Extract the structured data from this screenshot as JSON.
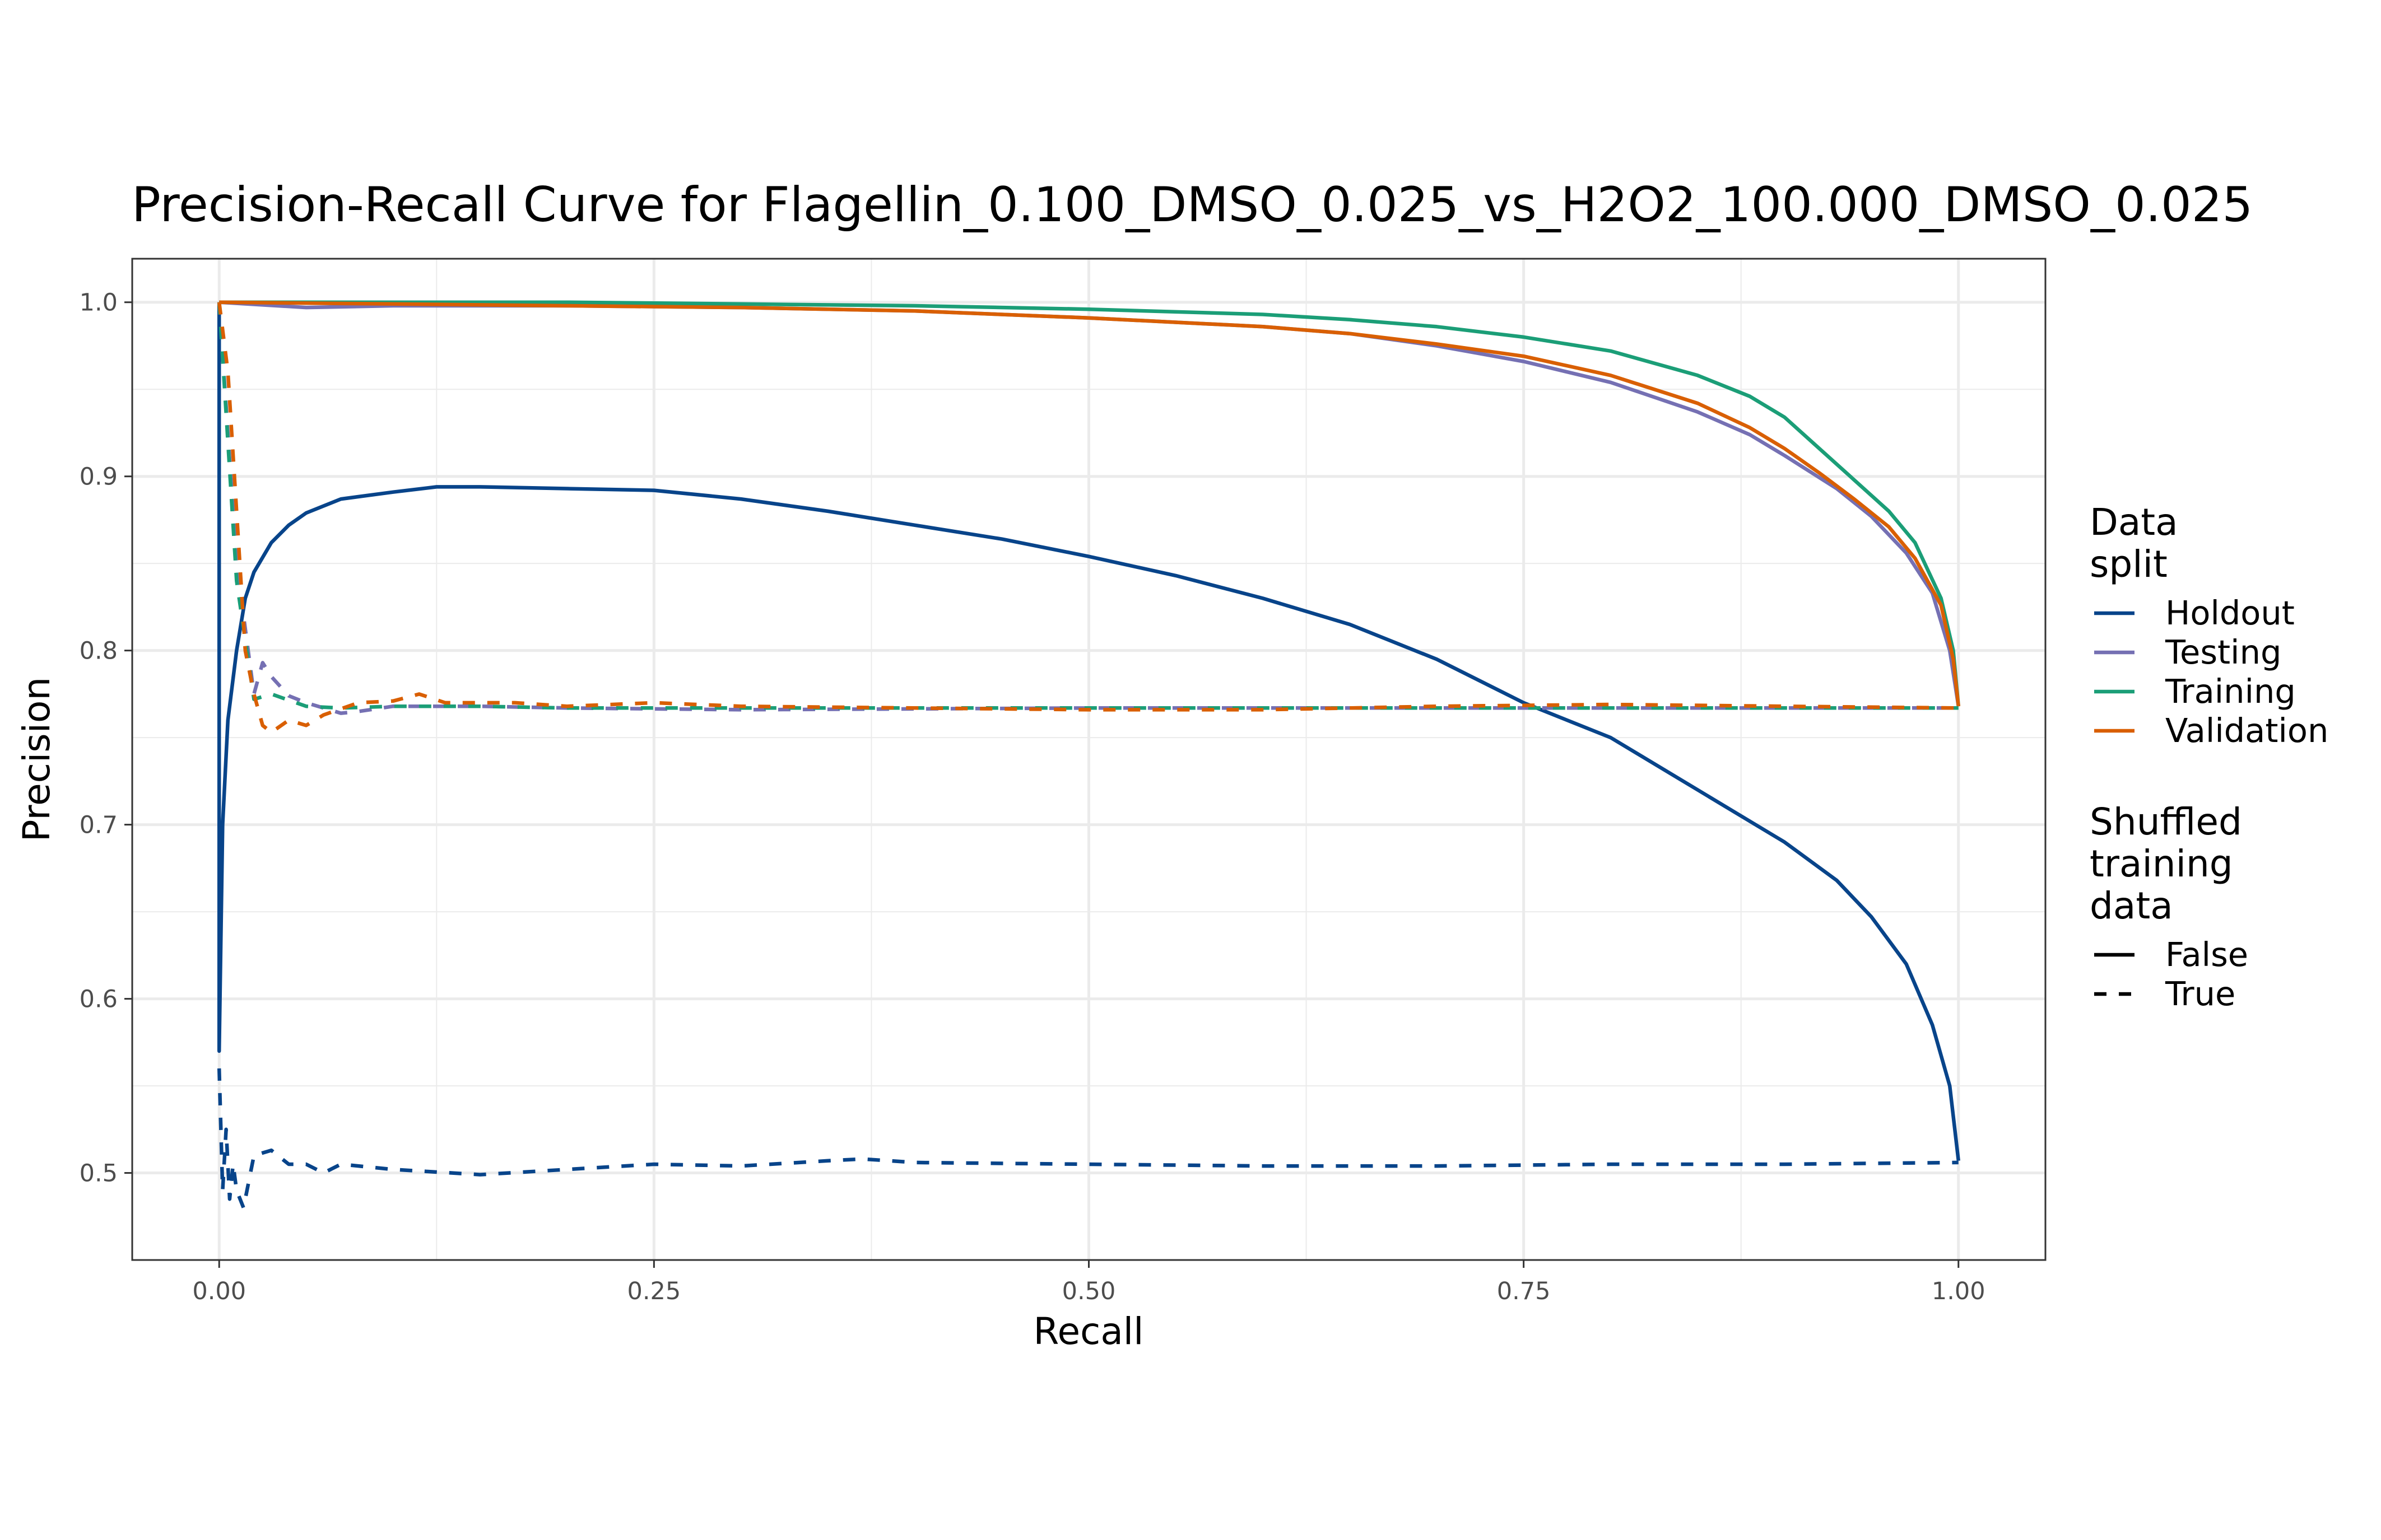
{
  "chart_data": {
    "type": "line",
    "title": "Precision-Recall Curve for Flagellin_0.100_DMSO_0.025_vs_H2O2_100.000_DMSO_0.025",
    "xlabel": "Recall",
    "ylabel": "Precision",
    "xlim": [
      -0.05,
      1.05
    ],
    "ylim": [
      0.45,
      1.025
    ],
    "xticks": [
      0.0,
      0.25,
      0.5,
      0.75,
      1.0
    ],
    "xtick_labels": [
      "0.00",
      "0.25",
      "0.50",
      "0.75",
      "1.00"
    ],
    "yticks": [
      0.5,
      0.6,
      0.7,
      0.8,
      0.9,
      1.0
    ],
    "ytick_labels": [
      "0.5",
      "0.6",
      "0.7",
      "0.8",
      "0.9",
      "1.0"
    ],
    "grid": true,
    "legend_position": "right",
    "legend": {
      "color_title": [
        "Data",
        "split"
      ],
      "linetype_title": [
        "Shuffled",
        "training",
        "data"
      ],
      "color_entries": [
        {
          "label": "Holdout",
          "color": "#08448a"
        },
        {
          "label": "Testing",
          "color": "#7570b3"
        },
        {
          "label": "Training",
          "color": "#1b9e77"
        },
        {
          "label": "Validation",
          "color": "#d95f02"
        }
      ],
      "linetype_entries": [
        {
          "label": "False",
          "dash": "solid"
        },
        {
          "label": "True",
          "dash": "dashed"
        }
      ]
    },
    "series": [
      {
        "split": "Holdout",
        "shuffled": "False",
        "color": "#08448a",
        "dashed": false,
        "x": [
          0.0,
          0.0,
          0.002,
          0.005,
          0.01,
          0.015,
          0.02,
          0.03,
          0.04,
          0.05,
          0.07,
          0.1,
          0.125,
          0.15,
          0.2,
          0.25,
          0.3,
          0.35,
          0.4,
          0.45,
          0.5,
          0.55,
          0.6,
          0.65,
          0.7,
          0.75,
          0.8,
          0.85,
          0.9,
          0.93,
          0.95,
          0.97,
          0.985,
          0.995,
          1.0
        ],
        "y": [
          1.0,
          0.57,
          0.7,
          0.76,
          0.8,
          0.83,
          0.845,
          0.862,
          0.872,
          0.879,
          0.887,
          0.891,
          0.894,
          0.894,
          0.893,
          0.892,
          0.887,
          0.88,
          0.872,
          0.864,
          0.854,
          0.843,
          0.83,
          0.815,
          0.795,
          0.77,
          0.75,
          0.72,
          0.69,
          0.668,
          0.647,
          0.62,
          0.585,
          0.55,
          0.507
        ]
      },
      {
        "split": "Testing",
        "shuffled": "False",
        "color": "#7570b3",
        "dashed": false,
        "x": [
          0.0,
          0.05,
          0.1,
          0.2,
          0.3,
          0.4,
          0.5,
          0.6,
          0.65,
          0.7,
          0.75,
          0.8,
          0.85,
          0.88,
          0.9,
          0.93,
          0.95,
          0.97,
          0.985,
          0.995,
          1.0
        ],
        "y": [
          1.0,
          0.997,
          0.998,
          0.998,
          0.997,
          0.995,
          0.991,
          0.986,
          0.982,
          0.975,
          0.966,
          0.954,
          0.937,
          0.924,
          0.912,
          0.893,
          0.877,
          0.856,
          0.833,
          0.8,
          0.768
        ]
      },
      {
        "split": "Training",
        "shuffled": "False",
        "color": "#1b9e77",
        "dashed": false,
        "x": [
          0.0,
          0.1,
          0.2,
          0.3,
          0.4,
          0.5,
          0.6,
          0.65,
          0.7,
          0.75,
          0.8,
          0.85,
          0.88,
          0.9,
          0.92,
          0.94,
          0.96,
          0.975,
          0.99,
          0.997,
          1.0
        ],
        "y": [
          1.0,
          1.0,
          1.0,
          0.999,
          0.998,
          0.996,
          0.993,
          0.99,
          0.986,
          0.98,
          0.972,
          0.958,
          0.946,
          0.934,
          0.916,
          0.898,
          0.88,
          0.862,
          0.83,
          0.8,
          0.768
        ]
      },
      {
        "split": "Validation",
        "shuffled": "False",
        "color": "#d95f02",
        "dashed": false,
        "x": [
          0.0,
          0.1,
          0.2,
          0.3,
          0.4,
          0.5,
          0.6,
          0.65,
          0.7,
          0.75,
          0.8,
          0.85,
          0.88,
          0.9,
          0.92,
          0.94,
          0.96,
          0.975,
          0.99,
          0.997,
          1.0
        ],
        "y": [
          1.0,
          0.999,
          0.998,
          0.997,
          0.995,
          0.991,
          0.986,
          0.982,
          0.976,
          0.969,
          0.958,
          0.942,
          0.928,
          0.916,
          0.902,
          0.887,
          0.871,
          0.853,
          0.826,
          0.795,
          0.768
        ]
      },
      {
        "split": "Holdout",
        "shuffled": "True",
        "color": "#08448a",
        "dashed": true,
        "x": [
          0.0,
          0.002,
          0.004,
          0.006,
          0.008,
          0.01,
          0.014,
          0.02,
          0.03,
          0.04,
          0.05,
          0.06,
          0.07,
          0.1,
          0.15,
          0.2,
          0.25,
          0.3,
          0.35,
          0.37,
          0.4,
          0.5,
          0.6,
          0.7,
          0.8,
          0.9,
          1.0
        ],
        "y": [
          0.56,
          0.49,
          0.525,
          0.485,
          0.505,
          0.49,
          0.48,
          0.51,
          0.513,
          0.505,
          0.505,
          0.5,
          0.505,
          0.502,
          0.499,
          0.502,
          0.505,
          0.504,
          0.507,
          0.508,
          0.506,
          0.505,
          0.504,
          0.504,
          0.505,
          0.505,
          0.506
        ]
      },
      {
        "split": "Testing",
        "shuffled": "True",
        "color": "#7570b3",
        "dashed": true,
        "x": [
          0.0,
          0.01,
          0.02,
          0.025,
          0.03,
          0.04,
          0.05,
          0.07,
          0.08,
          0.1,
          0.15,
          0.2,
          0.3,
          0.5,
          0.7,
          0.9,
          1.0
        ],
        "y": [
          1.0,
          0.85,
          0.775,
          0.793,
          0.785,
          0.774,
          0.77,
          0.764,
          0.765,
          0.768,
          0.768,
          0.767,
          0.766,
          0.767,
          0.767,
          0.767,
          0.767
        ]
      },
      {
        "split": "Training",
        "shuffled": "True",
        "color": "#1b9e77",
        "dashed": true,
        "x": [
          0.0,
          0.01,
          0.02,
          0.03,
          0.05,
          0.07,
          0.1,
          0.15,
          0.2,
          0.3,
          0.5,
          0.7,
          0.9,
          1.0
        ],
        "y": [
          1.0,
          0.84,
          0.772,
          0.775,
          0.768,
          0.767,
          0.768,
          0.768,
          0.767,
          0.767,
          0.767,
          0.767,
          0.767,
          0.767
        ]
      },
      {
        "split": "Validation",
        "shuffled": "True",
        "color": "#d95f02",
        "dashed": true,
        "x": [
          0.0,
          0.005,
          0.01,
          0.015,
          0.02,
          0.025,
          0.03,
          0.04,
          0.05,
          0.06,
          0.08,
          0.1,
          0.115,
          0.13,
          0.17,
          0.2,
          0.25,
          0.3,
          0.4,
          0.5,
          0.6,
          0.7,
          0.8,
          0.9,
          1.0
        ],
        "y": [
          1.0,
          0.96,
          0.88,
          0.8,
          0.775,
          0.757,
          0.753,
          0.76,
          0.757,
          0.763,
          0.77,
          0.771,
          0.775,
          0.77,
          0.77,
          0.768,
          0.77,
          0.768,
          0.767,
          0.766,
          0.766,
          0.768,
          0.769,
          0.768,
          0.767
        ]
      }
    ]
  }
}
